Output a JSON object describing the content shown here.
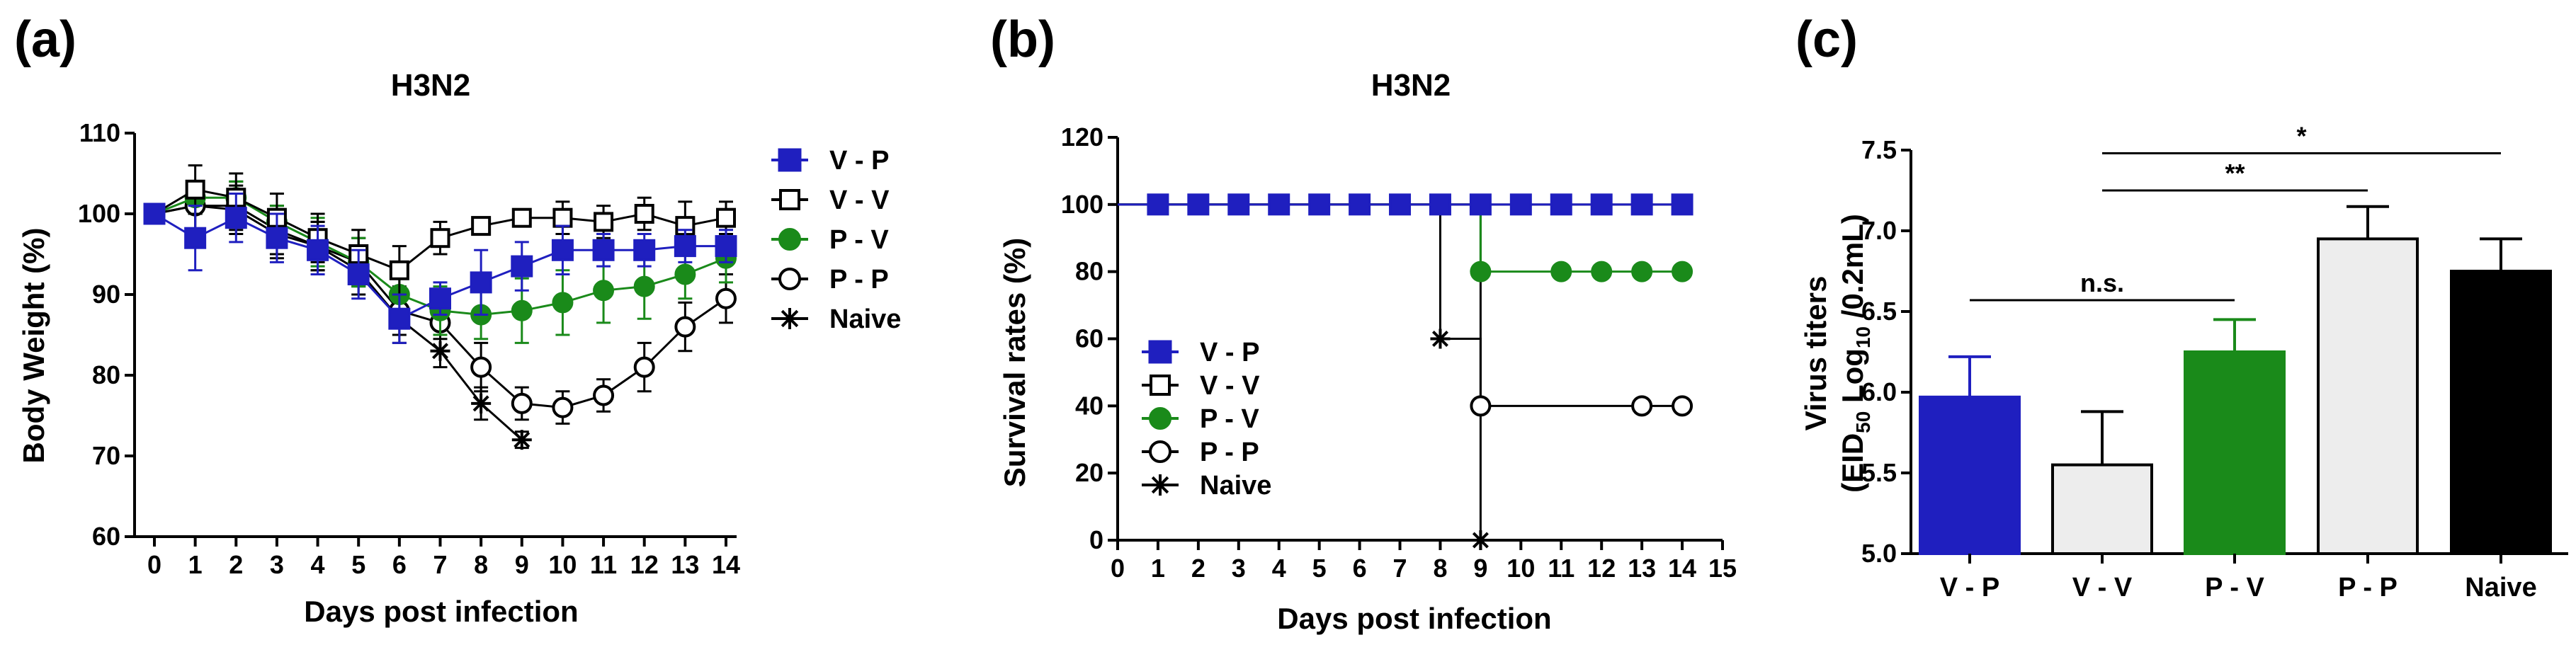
{
  "figure": {
    "panels": [
      "(a)",
      "(b)",
      "(c)"
    ]
  },
  "colors": {
    "V - P": "#1f1fbf",
    "V - V": "#ffffff",
    "P - V": "#1a8a1a",
    "P - P": "#ffffff",
    "Naive": "#000000",
    "bar_V - V": "#ededed",
    "bar_P - P": "#ededed"
  },
  "chart_data": [
    {
      "id": "a",
      "type": "line",
      "panel_label": "(a)",
      "title": "H3N2",
      "xlabel": "Days post infection",
      "ylabel": "Body Weight (%)",
      "xlim": [
        0,
        14
      ],
      "ylim": [
        60,
        110
      ],
      "xticks": [
        0,
        1,
        2,
        3,
        4,
        5,
        6,
        7,
        8,
        9,
        10,
        11,
        12,
        13,
        14
      ],
      "yticks": [
        60,
        70,
        80,
        90,
        100,
        110
      ],
      "legend": [
        "V - P",
        "V - V",
        "P - V",
        "P - P",
        "Naive"
      ],
      "series": [
        {
          "name": "V - P",
          "x": [
            0,
            1,
            2,
            3,
            4,
            5,
            6,
            7,
            8,
            9,
            10,
            11,
            12,
            13,
            14
          ],
          "y": [
            100,
            97,
            99.5,
            97,
            95.5,
            92.5,
            87,
            89.5,
            91.5,
            93.5,
            95.5,
            95.5,
            95.5,
            96,
            96
          ],
          "err": [
            0,
            4,
            3,
            3,
            3,
            3,
            3,
            2,
            4,
            3,
            3,
            2,
            2,
            2,
            2
          ]
        },
        {
          "name": "V - V",
          "x": [
            0,
            1,
            2,
            3,
            4,
            5,
            6,
            7,
            8,
            9,
            10,
            11,
            12,
            13,
            14
          ],
          "y": [
            100,
            103,
            102,
            99.5,
            97,
            95,
            93,
            97,
            98.5,
            99.5,
            99.5,
            99,
            100,
            98.5,
            99.5
          ],
          "err": [
            0,
            3,
            3,
            3,
            3,
            3,
            3,
            2,
            1,
            1,
            2,
            2,
            2,
            3,
            2
          ]
        },
        {
          "name": "P - V",
          "x": [
            0,
            1,
            2,
            3,
            4,
            5,
            6,
            7,
            8,
            9,
            10,
            11,
            12,
            13,
            14
          ],
          "y": [
            100,
            102,
            102,
            99,
            96.5,
            94,
            90,
            88,
            87.5,
            88,
            89,
            90.5,
            91,
            92.5,
            94.5
          ],
          "err": [
            0,
            2,
            2,
            2,
            3,
            3,
            3,
            3,
            3,
            4,
            4,
            4,
            4,
            3,
            3
          ]
        },
        {
          "name": "P - P",
          "x": [
            0,
            1,
            2,
            3,
            4,
            5,
            6,
            7,
            8,
            9,
            10,
            11,
            12,
            13,
            14
          ],
          "y": [
            100,
            101,
            100.5,
            97.5,
            96,
            94,
            88,
            86.5,
            81,
            76.5,
            76,
            77.5,
            81,
            86,
            89.5
          ],
          "err": [
            0,
            3,
            3,
            3,
            3,
            3,
            3,
            2,
            3,
            2,
            2,
            2,
            3,
            3,
            3
          ]
        },
        {
          "name": "Naive",
          "x": [
            0,
            1,
            2,
            3,
            4,
            5,
            6,
            7,
            8,
            9
          ],
          "y": [
            100,
            101,
            101,
            98,
            96,
            93,
            87,
            83,
            76.5,
            72
          ],
          "err": [
            0,
            3,
            3,
            3,
            3,
            3,
            3,
            2,
            2,
            1
          ]
        }
      ]
    },
    {
      "id": "b",
      "type": "line",
      "panel_label": "(b)",
      "title": "H3N2",
      "xlabel": "Days post infection",
      "ylabel": "Survival rates (%)",
      "xlim": [
        0,
        15
      ],
      "ylim": [
        0,
        120
      ],
      "xticks": [
        0,
        1,
        2,
        3,
        4,
        5,
        6,
        7,
        8,
        9,
        10,
        11,
        12,
        13,
        14,
        15
      ],
      "yticks": [
        0,
        20,
        40,
        60,
        80,
        100,
        120
      ],
      "legend": [
        "V - P",
        "V - V",
        "P - V",
        "P - P",
        "Naive"
      ],
      "series": [
        {
          "name": "V - P",
          "step": [
            [
              0,
              100
            ],
            [
              14,
              100
            ]
          ],
          "markers": [
            [
              1,
              100
            ],
            [
              2,
              100
            ],
            [
              3,
              100
            ],
            [
              4,
              100
            ],
            [
              5,
              100
            ],
            [
              6,
              100
            ],
            [
              7,
              100
            ],
            [
              8,
              100
            ],
            [
              9,
              100
            ],
            [
              10,
              100
            ],
            [
              11,
              100
            ],
            [
              12,
              100
            ],
            [
              13,
              100
            ],
            [
              14,
              100
            ]
          ]
        },
        {
          "name": "V - V",
          "step": [
            [
              0,
              100
            ],
            [
              14,
              100
            ]
          ],
          "markers": [
            [
              1,
              100
            ],
            [
              2,
              100
            ],
            [
              3,
              100
            ],
            [
              4,
              100
            ],
            [
              5,
              100
            ],
            [
              6,
              100
            ],
            [
              7,
              100
            ],
            [
              8,
              100
            ],
            [
              9,
              100
            ],
            [
              10,
              100
            ],
            [
              11,
              100
            ],
            [
              12,
              100
            ],
            [
              13,
              100
            ],
            [
              14,
              100
            ]
          ]
        },
        {
          "name": "P - V",
          "step": [
            [
              0,
              100
            ],
            [
              9,
              100
            ],
            [
              9,
              80
            ],
            [
              14,
              80
            ]
          ],
          "markers": [
            [
              9,
              80
            ],
            [
              11,
              80
            ],
            [
              12,
              80
            ],
            [
              13,
              80
            ],
            [
              14,
              80
            ]
          ]
        },
        {
          "name": "P - P",
          "step": [
            [
              0,
              100
            ],
            [
              9,
              100
            ],
            [
              9,
              40
            ],
            [
              14,
              40
            ]
          ],
          "markers": [
            [
              9,
              40
            ],
            [
              13,
              40
            ],
            [
              14,
              40
            ]
          ]
        },
        {
          "name": "Naive",
          "step": [
            [
              0,
              100
            ],
            [
              8,
              100
            ],
            [
              8,
              60
            ],
            [
              9,
              60
            ],
            [
              9,
              0
            ]
          ],
          "markers": [
            [
              8,
              60
            ],
            [
              9,
              0
            ]
          ]
        }
      ]
    },
    {
      "id": "c",
      "type": "bar",
      "panel_label": "(c)",
      "title": "",
      "ylabel_line1": "Virus titers",
      "ylabel_line2": "(EID50 Log10 /0.2mL)",
      "ylabel_parts": {
        "open": "(EID",
        "sub1": "50",
        "mid": " Log",
        "sub2": "10",
        "close": " /0.2mL)"
      },
      "categories": [
        "V - P",
        "V - V",
        "P - V",
        "P - P",
        "Naive"
      ],
      "values": [
        5.97,
        5.55,
        6.25,
        6.95,
        6.75
      ],
      "errors": [
        0.25,
        0.33,
        0.2,
        0.2,
        0.2
      ],
      "ylim": [
        5.0,
        7.5
      ],
      "yticks": [
        "5.0",
        "5.5",
        "6.0",
        "6.5",
        "7.0",
        "7.5"
      ],
      "significance": [
        {
          "from": "V - P",
          "to": "P - V",
          "label": "n.s.",
          "level": 6.57
        },
        {
          "from": "V - V",
          "to": "P - P",
          "label": "**",
          "level": 7.25
        },
        {
          "from": "V - V",
          "to": "Naive",
          "label": "*",
          "level": 7.48
        }
      ]
    }
  ]
}
